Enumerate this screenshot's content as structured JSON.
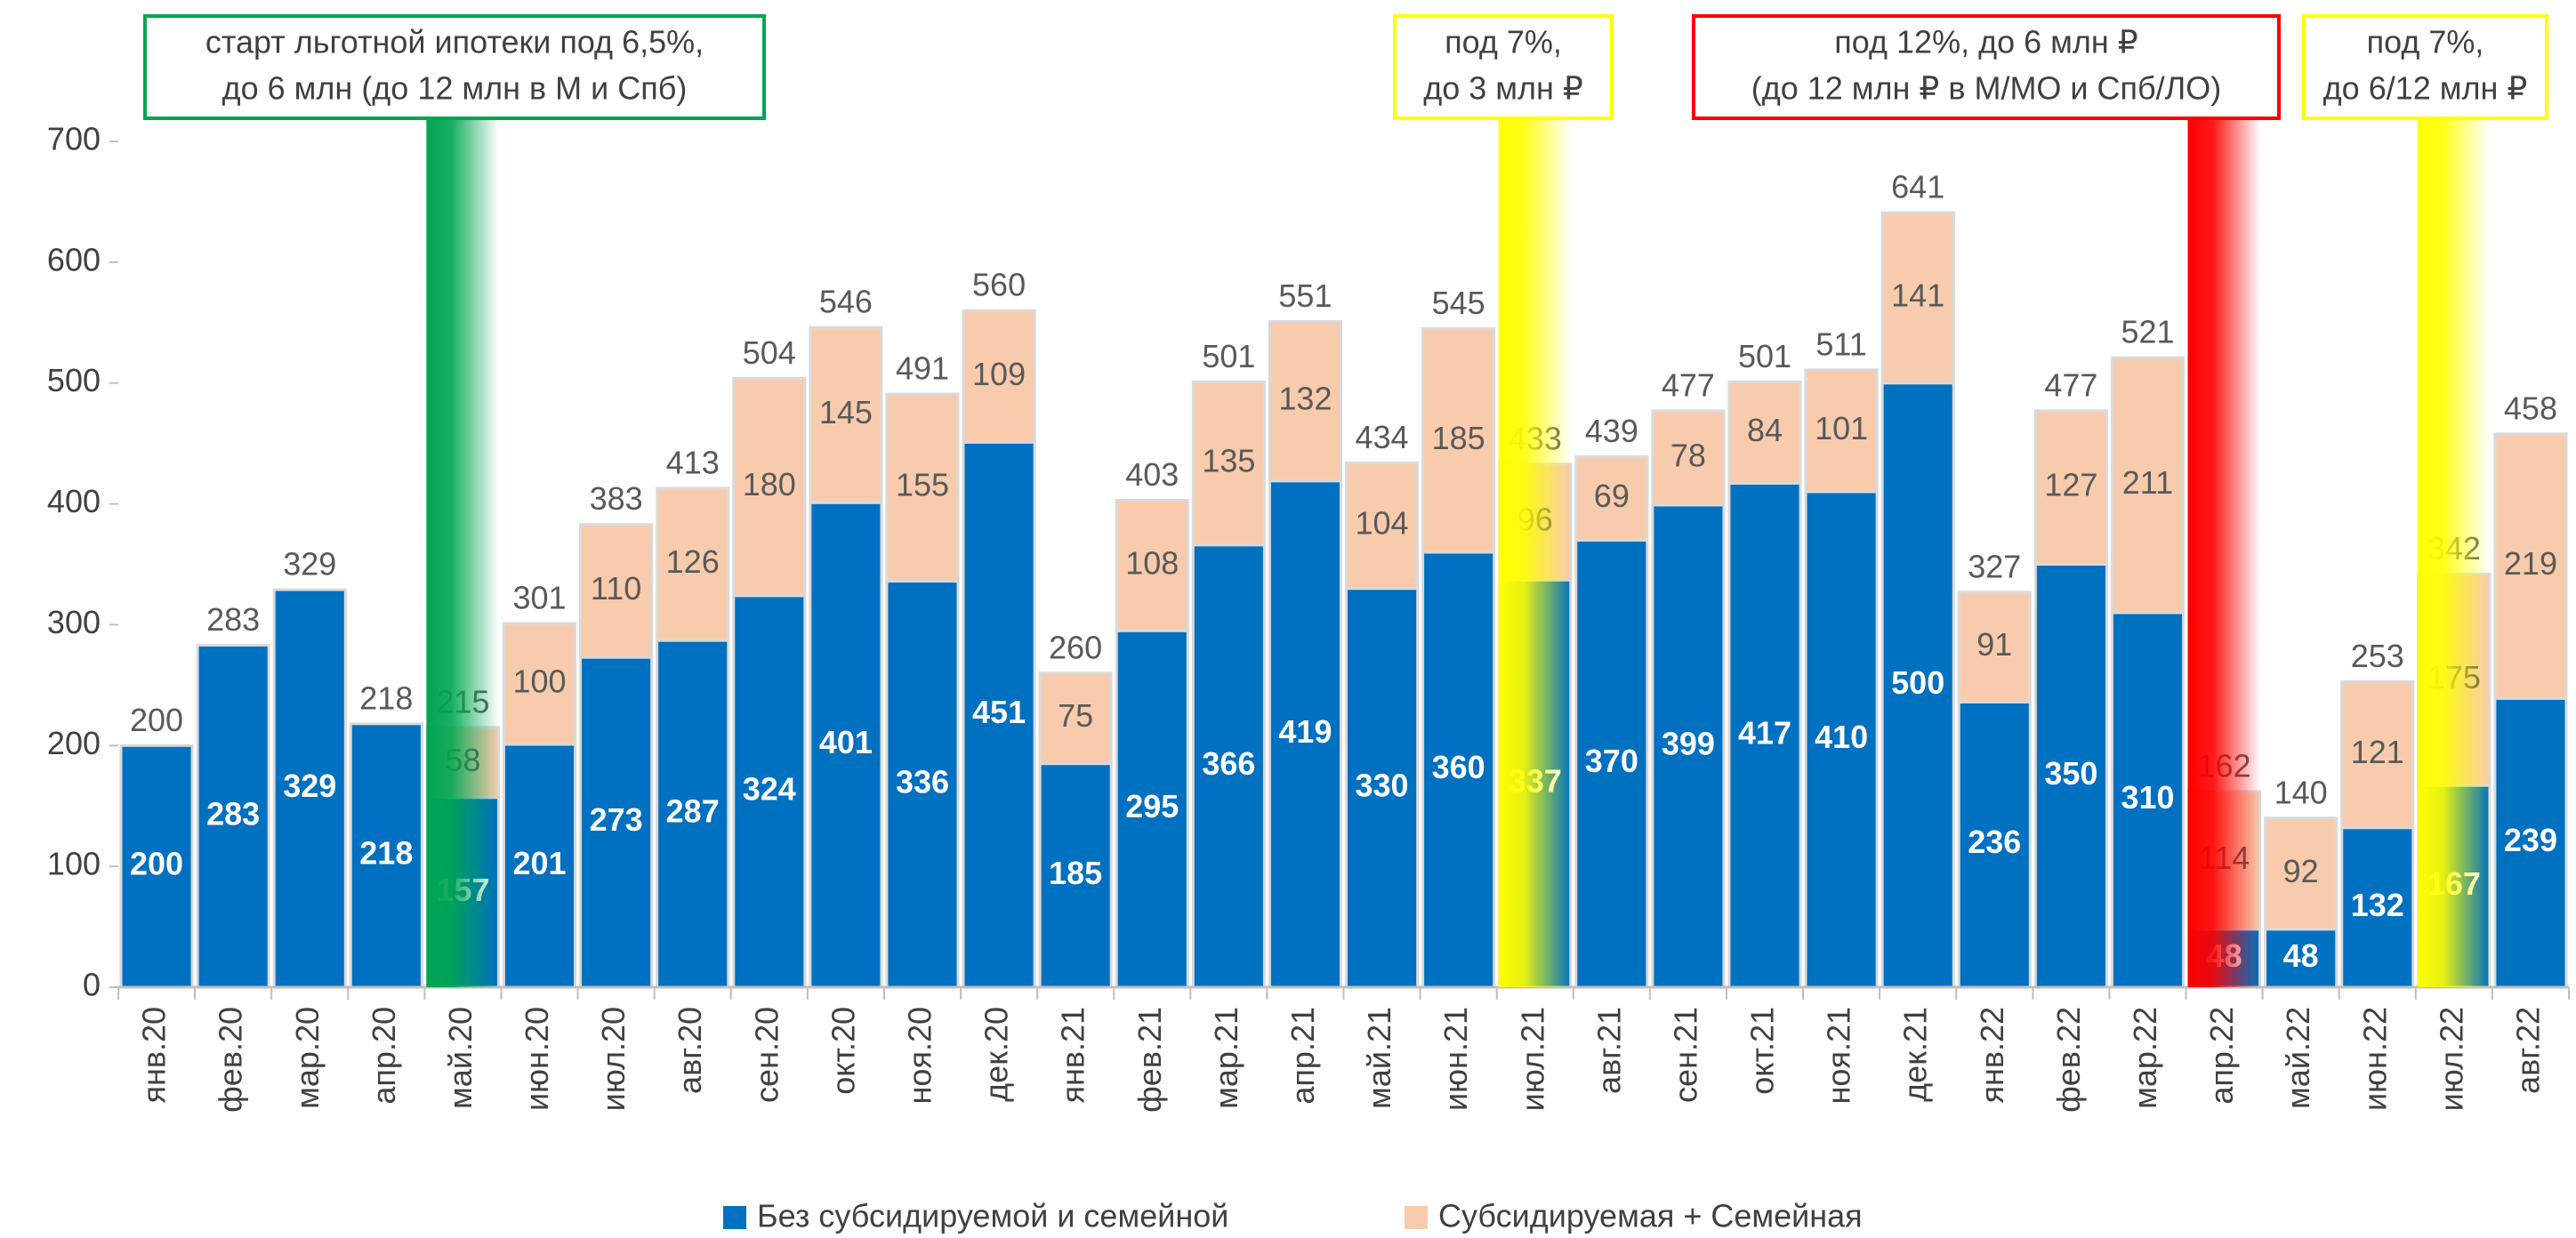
{
  "chart_data": {
    "type": "stacked_bar",
    "categories": [
      "янв.20",
      "фев.20",
      "мар.20",
      "апр.20",
      "май.20",
      "июн.20",
      "июл.20",
      "авг.20",
      "сен.20",
      "окт.20",
      "ноя.20",
      "дек.20",
      "янв.21",
      "фев.21",
      "мар.21",
      "апр.21",
      "май.21",
      "июн.21",
      "июл.21",
      "авг.21",
      "сен.21",
      "окт.21",
      "ноя.21",
      "дек.21",
      "янв.22",
      "фев.22",
      "мар.22",
      "апр.22",
      "май.22",
      "июн.22",
      "июл.22",
      "авг.22"
    ],
    "series": [
      {
        "name": "Без субсидируемой и семейной",
        "color": "#0070c0",
        "values": [
          200,
          283,
          329,
          218,
          157,
          201,
          273,
          287,
          324,
          401,
          336,
          451,
          185,
          295,
          366,
          419,
          330,
          360,
          337,
          370,
          399,
          417,
          410,
          500,
          236,
          350,
          310,
          48,
          48,
          132,
          167,
          239
        ]
      },
      {
        "name": "Субсидируемая + Семейная",
        "color": "#f8cbad",
        "values": [
          null,
          null,
          null,
          null,
          58,
          100,
          110,
          126,
          180,
          145,
          155,
          109,
          75,
          108,
          135,
          132,
          104,
          185,
          96,
          69,
          78,
          84,
          101,
          141,
          91,
          127,
          211,
          114,
          92,
          121,
          175,
          219
        ]
      }
    ],
    "totals": [
      200,
      283,
      329,
      218,
      215,
      301,
      383,
      413,
      504,
      546,
      491,
      560,
      260,
      403,
      501,
      551,
      434,
      545,
      433,
      439,
      477,
      501,
      511,
      641,
      327,
      477,
      521,
      162,
      140,
      253,
      342,
      458
    ],
    "ylim": [
      0,
      700
    ],
    "yticks": [
      0,
      100,
      200,
      300,
      400,
      500,
      600,
      700
    ],
    "grid": false,
    "legend": "bottom",
    "annotations": [
      {
        "lines": [
          "старт льготной ипотеки под 6,5%,",
          "до 6 млн (до 12 млн в М и Спб)"
        ],
        "color": "#00a651",
        "category": "май.20"
      },
      {
        "lines": [
          "под 7%,",
          "до 3 млн ₽"
        ],
        "color": "#ffff00",
        "category": "июл.21"
      },
      {
        "lines": [
          "под 12%, до 6 млн ₽",
          "(до 12 млн ₽ в М/МО и Спб/ЛО)"
        ],
        "color": "#ff0000",
        "category": "апр.22"
      },
      {
        "lines": [
          "под 7%,",
          "до 6/12 млн ₽"
        ],
        "color": "#ffff00",
        "category": "июл.22"
      }
    ]
  }
}
